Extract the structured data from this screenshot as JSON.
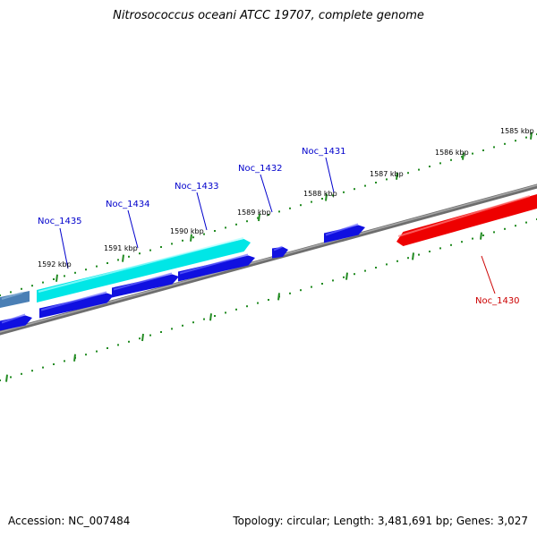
{
  "title": "Nitrosococcus oceani ATCC 19707, complete genome",
  "footer": {
    "accession": "Accession: NC_007484",
    "summary": "Topology: circular; Length: 3,481,691 bp; Genes: 3,027"
  },
  "colors": {
    "backbone": "#808080",
    "tick_ring": "#228B22",
    "forward_gene": "#00e6e6",
    "reverse_gene": "#1010e0",
    "highlight_gene": "#ee0000",
    "other_gene": "#4a7fb5",
    "forward_label": "#0000cc",
    "highlight_label": "#cc0000"
  },
  "ticks": [
    {
      "label": "1585 kbp"
    },
    {
      "label": "1586 kbp"
    },
    {
      "label": "1587 kbp"
    },
    {
      "label": "1588 kbp"
    },
    {
      "label": "1589 kbp"
    },
    {
      "label": "1590 kbp"
    },
    {
      "label": "1591 kbp"
    },
    {
      "label": "1592 kbp"
    }
  ],
  "gene_labels": [
    {
      "text": "Noc_1430"
    },
    {
      "text": "Noc_1431"
    },
    {
      "text": "Noc_1432"
    },
    {
      "text": "Noc_1433"
    },
    {
      "text": "Noc_1434"
    },
    {
      "text": "Noc_1435"
    }
  ]
}
